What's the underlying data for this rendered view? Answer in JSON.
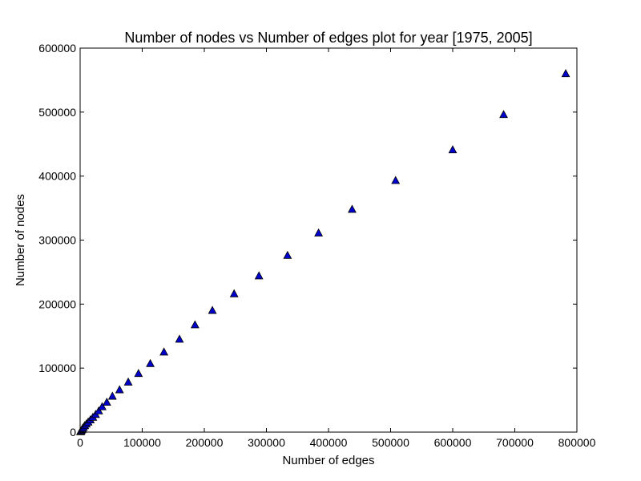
{
  "chart_data": {
    "type": "scatter",
    "title": "Number of nodes vs Number of edges plot for year [1975, 2005]",
    "xlabel": "Number of edges",
    "ylabel": "Number of nodes",
    "xlim": [
      0,
      800000
    ],
    "ylim": [
      0,
      600000
    ],
    "xticks": [
      0,
      100000,
      200000,
      300000,
      400000,
      500000,
      600000,
      700000,
      800000
    ],
    "yticks": [
      0,
      100000,
      200000,
      300000,
      400000,
      500000,
      600000
    ],
    "xtick_labels": [
      "0",
      "100000",
      "200000",
      "300000",
      "400000",
      "500000",
      "600000",
      "700000",
      "800000"
    ],
    "ytick_labels": [
      "0",
      "100000",
      "200000",
      "300000",
      "400000",
      "500000",
      "600000"
    ],
    "grid": false,
    "marker": "triangle",
    "marker_color": "#0000cc",
    "series": [
      {
        "x": [
          500,
          1000,
          1800,
          2800,
          4000,
          5500,
          7500,
          10000,
          13000,
          16500,
          20500,
          25000,
          30000,
          35500,
          43000,
          52000,
          63500,
          77500,
          94000,
          113000,
          135000,
          160000,
          185000,
          213000,
          248000,
          288000,
          334000,
          384000,
          438000,
          508000,
          600000,
          682000,
          782000
        ],
        "y": [
          500,
          1000,
          2000,
          3500,
          5500,
          7500,
          10000,
          12500,
          15500,
          19000,
          23000,
          27500,
          33000,
          39500,
          46500,
          56000,
          66000,
          78000,
          91500,
          107000,
          125000,
          145000,
          167500,
          190000,
          216000,
          244000,
          276000,
          311000,
          348000,
          393000,
          441000,
          496000,
          560000
        ]
      }
    ]
  }
}
